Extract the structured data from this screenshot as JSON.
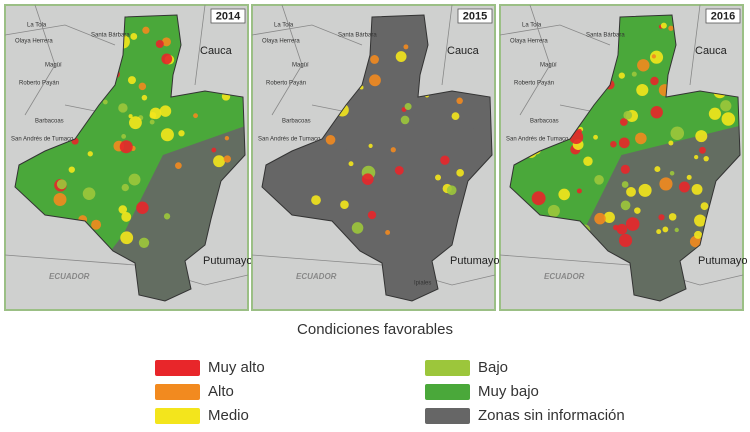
{
  "panels": [
    {
      "year": "2014",
      "labels": [
        "La Tola",
        "Olaya Herrera",
        "Santa Bárbara",
        "Magüí",
        "Roberto Payán",
        "Barbacoas",
        "San Andrés de Tumaco",
        "Cauca",
        "Putumayo",
        "ECUADOR"
      ]
    },
    {
      "year": "2015",
      "labels": [
        "La Tola",
        "Olaya Herrera",
        "Santa Bárbara",
        "Magüí",
        "Roberto Payán",
        "Barbacoas",
        "San Andrés de Tumaco",
        "Cauca",
        "Putumayo",
        "ECUADOR",
        "Ipiales"
      ]
    },
    {
      "year": "2016",
      "labels": [
        "La Tola",
        "Olaya Herrera",
        "Santa Bárbara",
        "Magüí",
        "Roberto Payán",
        "Barbacoas",
        "San Andrés de Tumaco",
        "Cauca",
        "Putumayo",
        "ECUADOR"
      ]
    }
  ],
  "legend": {
    "title": "Condiciones favorables",
    "items": [
      {
        "label": "Muy alto",
        "color": "#e8262a"
      },
      {
        "label": "Alto",
        "color": "#f28a1f"
      },
      {
        "label": "Medio",
        "color": "#f3e51c"
      },
      {
        "label": "Bajo",
        "color": "#9cc63b"
      },
      {
        "label": "Muy bajo",
        "color": "#4aa83a"
      },
      {
        "label": "Zonas sin información",
        "color": "#666666"
      }
    ]
  }
}
